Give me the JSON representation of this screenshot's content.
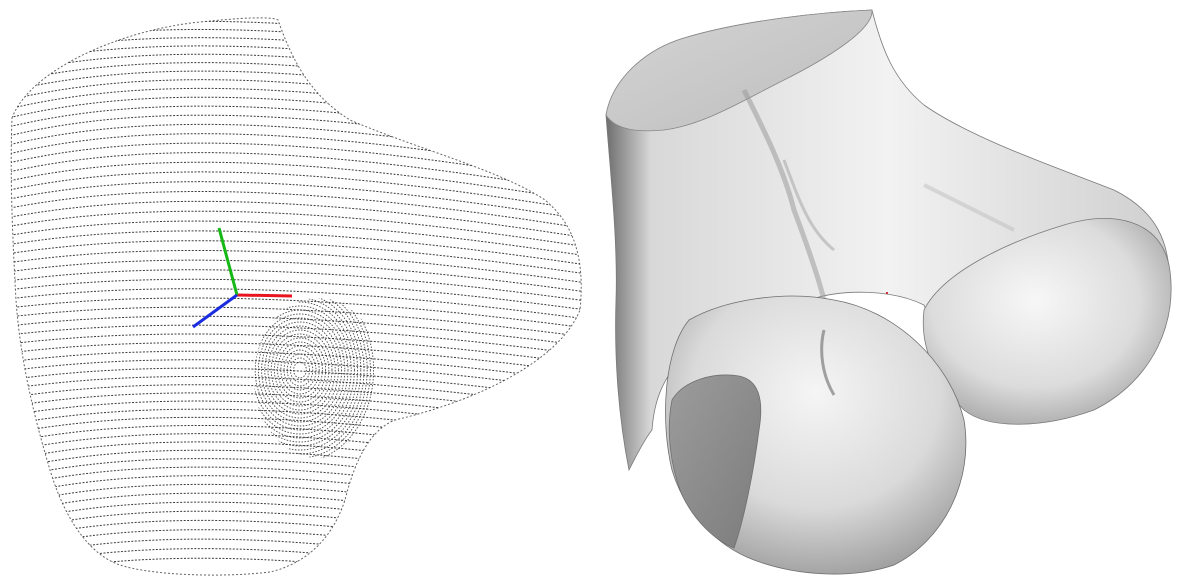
{
  "figure": {
    "left_view": {
      "kind": "point-cloud contour scan",
      "stroke_color": "#1a1a1a",
      "axes_triad": {
        "x_color": "#e8141e",
        "y_color": "#16b816",
        "z_color": "#1a2ee0"
      }
    },
    "right_view": {
      "kind": "shaded surface mesh",
      "base_color": "#e4e4e4",
      "shadow_color": "#8a8a8a",
      "highlight_color": "#ffffff",
      "marker_color": "#d0303a"
    }
  }
}
